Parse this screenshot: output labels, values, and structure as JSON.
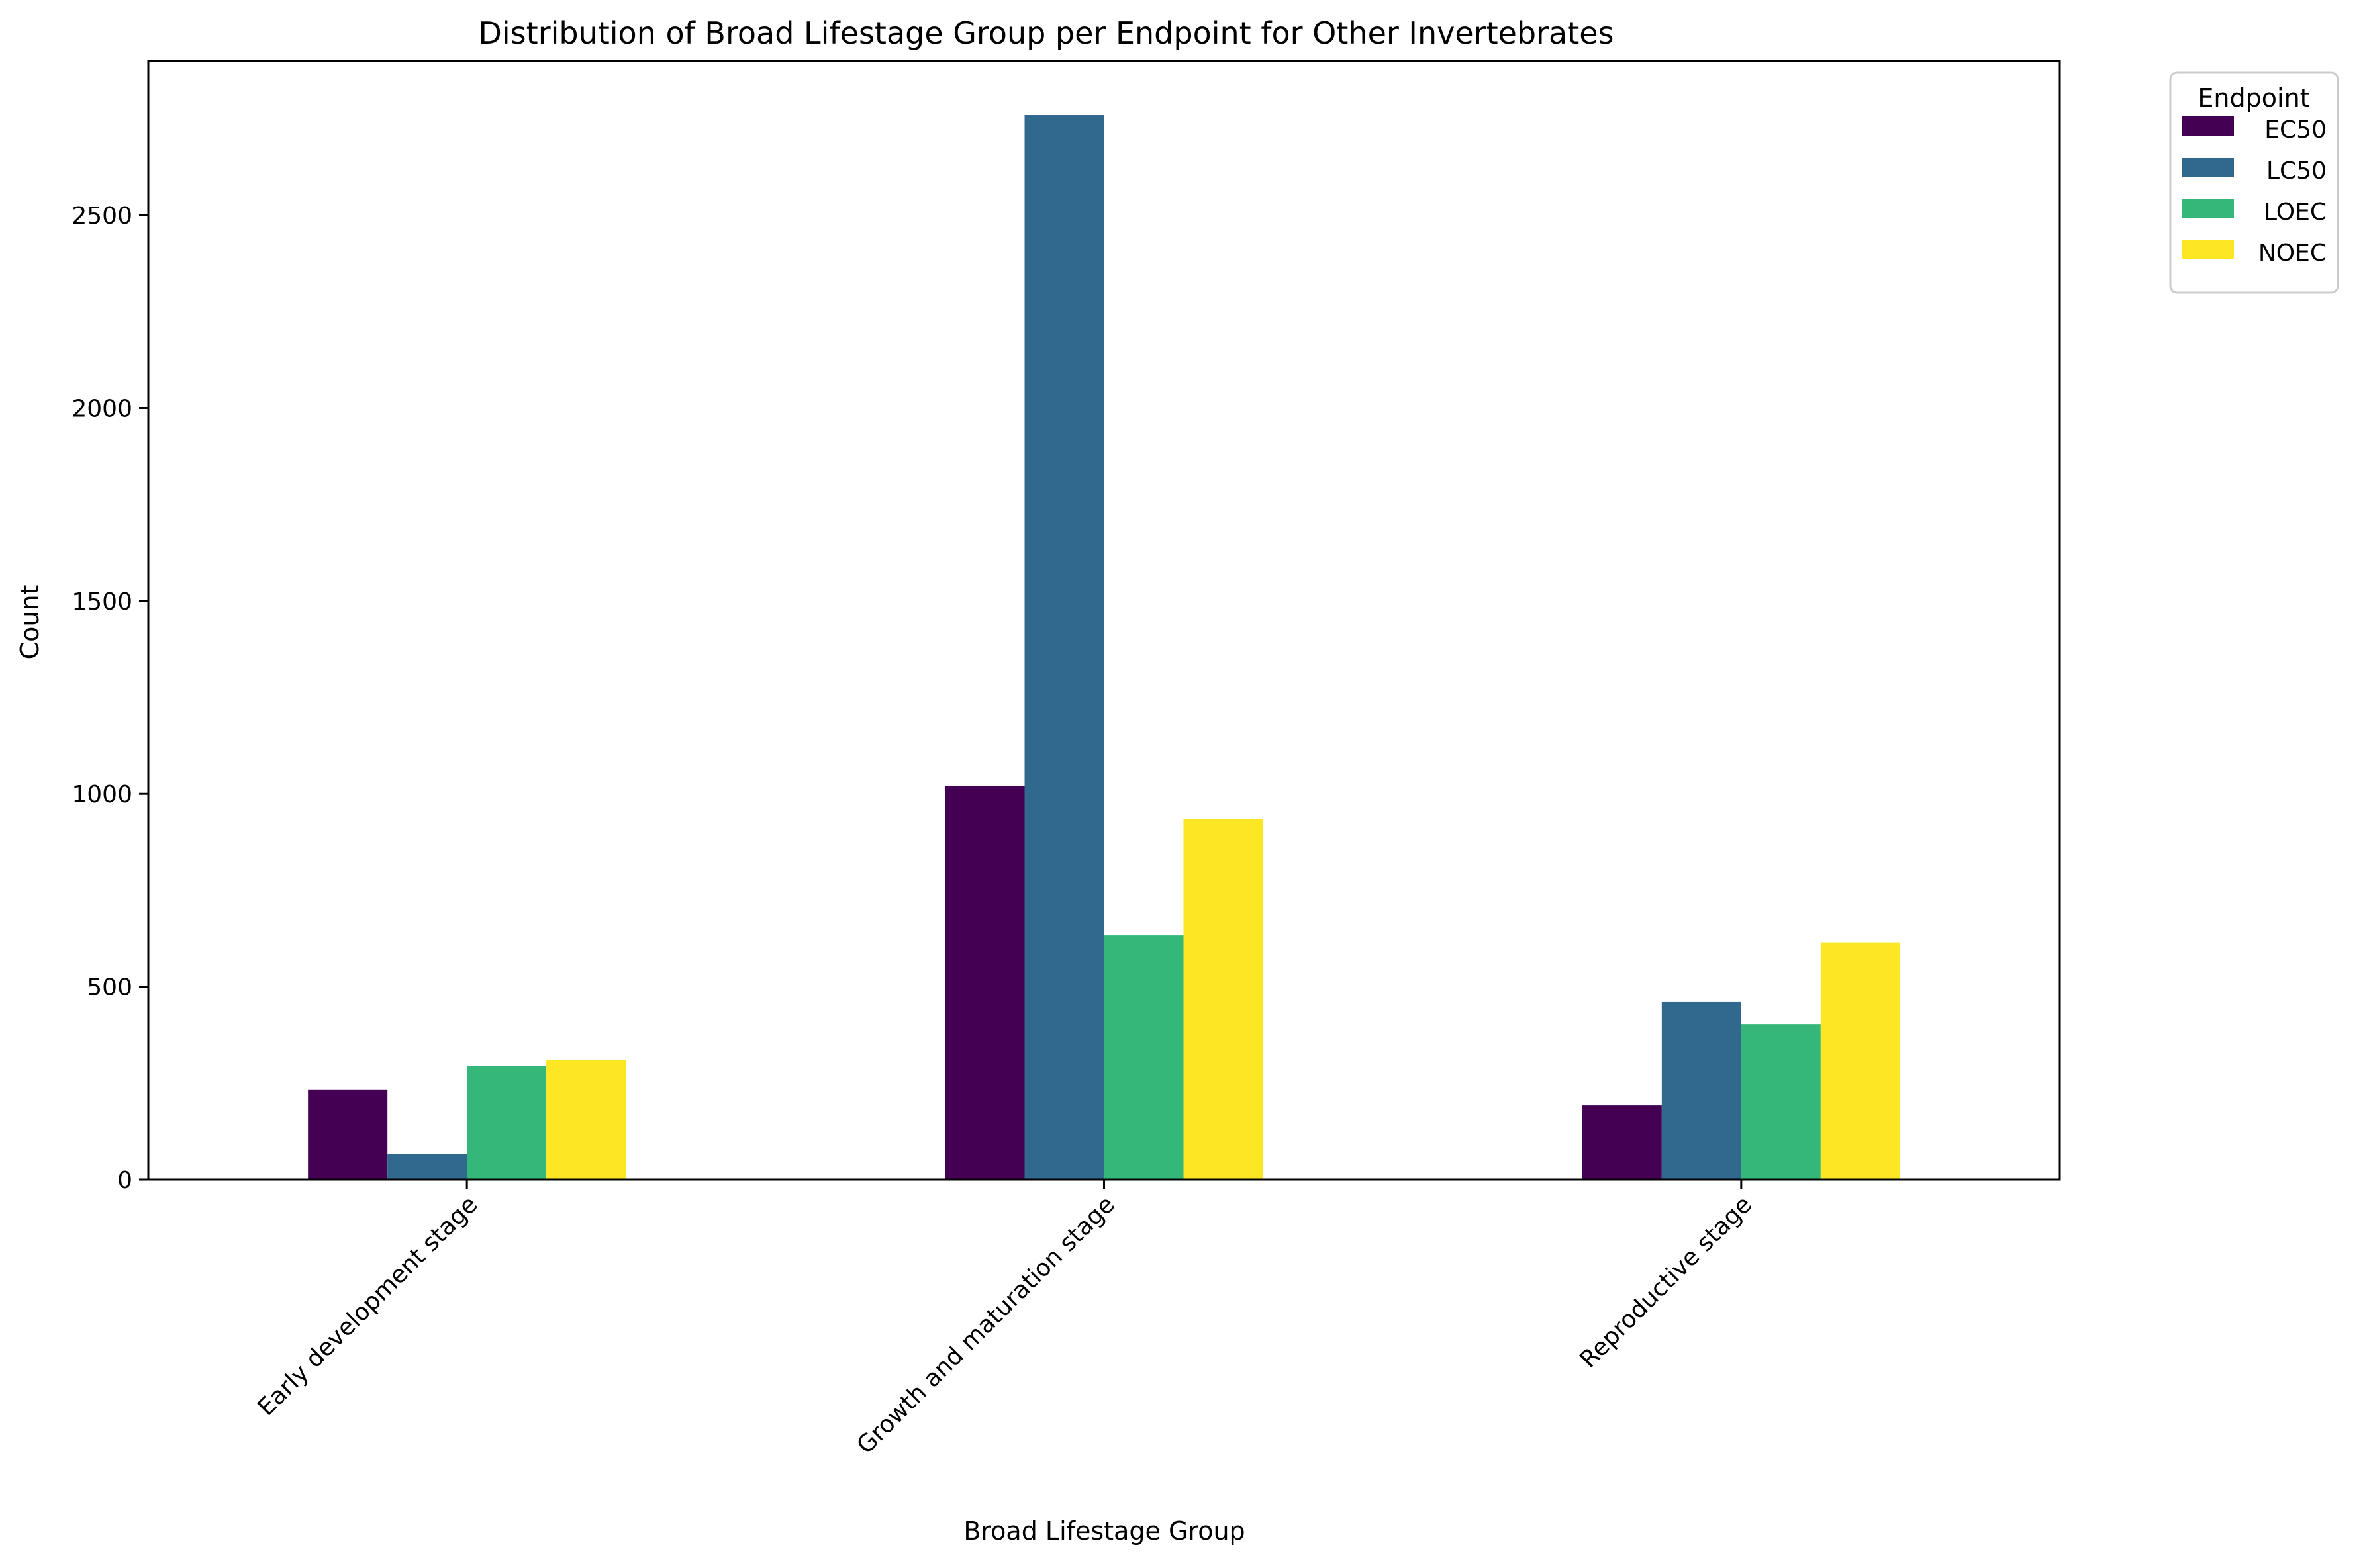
{
  "chart_data": {
    "type": "bar",
    "title": "Distribution of Broad Lifestage Group per Endpoint for Other Invertebrates",
    "xlabel": "Broad Lifestage Group",
    "ylabel": "Count",
    "categories": [
      "Early development stage",
      "Growth and maturation stage",
      "Reproductive stage"
    ],
    "series": [
      {
        "name": "EC50",
        "color": "#440154",
        "values": [
          232,
          1020,
          192
        ]
      },
      {
        "name": "LC50",
        "color": "#31688e",
        "values": [
          66,
          2760,
          460
        ]
      },
      {
        "name": "LOEC",
        "color": "#35b779",
        "values": [
          294,
          633,
          403
        ]
      },
      {
        "name": "NOEC",
        "color": "#fde725",
        "values": [
          310,
          935,
          615
        ]
      }
    ],
    "ylim": [
      0,
      2900
    ],
    "yticks": [
      0,
      500,
      1000,
      1500,
      2000,
      2500
    ],
    "legend": {
      "title": "Endpoint",
      "placement": "outside upper-right"
    },
    "grid": false
  }
}
